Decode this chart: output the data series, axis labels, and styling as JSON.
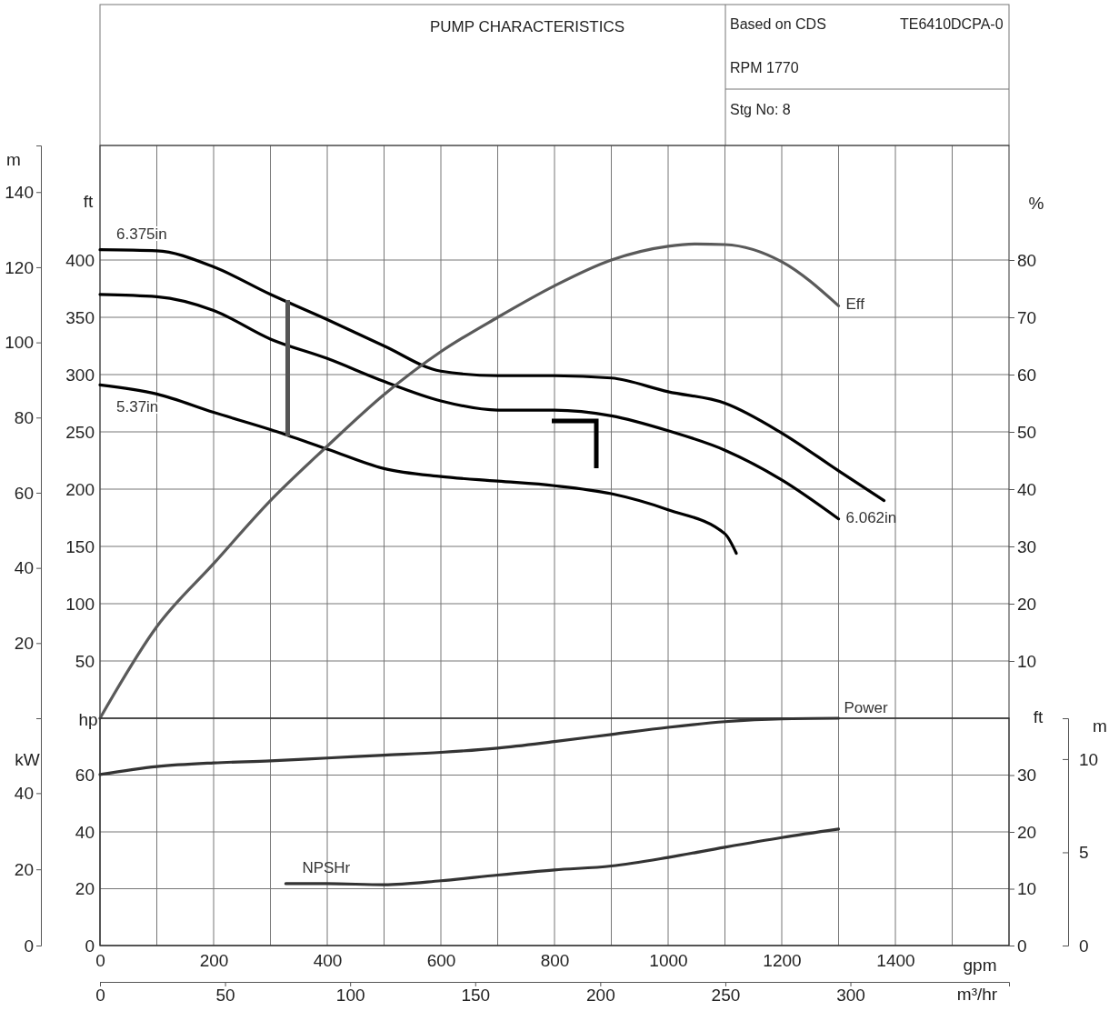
{
  "chart_data": [
    {
      "type": "line",
      "title": "PUMP CHARACTERISTICS",
      "annotations": [
        "Based on CDS",
        "TE6410DCPA-0",
        "RPM  1770",
        "Stg No: 8"
      ],
      "ylabel": "ft",
      "y2label": "%",
      "y3label": "m",
      "xlim": [
        0,
        1600
      ],
      "xticks": [
        0,
        {
          "value": 100,
          "label": null
        },
        200,
        {
          "value": 300,
          "label": null
        },
        400,
        {
          "value": 500,
          "label": null
        },
        600,
        {
          "value": 700,
          "label": null
        },
        800,
        {
          "value": 900,
          "label": null
        },
        1000,
        {
          "value": 1100,
          "label": null
        },
        1200,
        {
          "value": 1300,
          "label": null
        },
        1400,
        {
          "value": 1500,
          "label": null
        }
      ],
      "ylim": [
        0,
        500
      ],
      "yticks": [
        50,
        100,
        150,
        200,
        250,
        300,
        350,
        400
      ],
      "y2lim": [
        0,
        100
      ],
      "y2ticks": [
        10,
        20,
        30,
        40,
        50,
        60,
        70,
        80
      ],
      "y3lim": [
        0,
        152.4
      ],
      "y3ticks": [
        20,
        40,
        60,
        80,
        100,
        120,
        140
      ],
      "grid": true,
      "tick_labels": "y",
      "series": [
        {
          "name": "6.375in",
          "color": "#000000",
          "x": [
            0,
            100,
            200,
            300,
            400,
            500,
            600,
            700,
            800,
            900,
            1000,
            1100,
            1200,
            1300,
            1380
          ],
          "values": [
            409,
            408,
            394,
            370,
            348,
            325,
            303,
            299,
            299,
            297,
            285,
            275,
            249,
            216,
            190
          ]
        },
        {
          "name": "6.062in",
          "color": "#000000",
          "x": [
            0,
            100,
            200,
            300,
            400,
            500,
            600,
            700,
            800,
            900,
            1000,
            1100,
            1200,
            1300
          ],
          "values": [
            370,
            368,
            356,
            331,
            314,
            294,
            277,
            269,
            269,
            264,
            251,
            234,
            208,
            174
          ]
        },
        {
          "name": "5.37in",
          "color": "#000000",
          "x": [
            0,
            100,
            200,
            300,
            400,
            500,
            600,
            700,
            800,
            900,
            1000,
            1100,
            1120
          ],
          "values": [
            291,
            283,
            267,
            252,
            235,
            218,
            211,
            207,
            203,
            196,
            182,
            161,
            144
          ]
        },
        {
          "name": "Eff",
          "color": "#5a5a5a",
          "axis": "y2",
          "x": [
            0,
            100,
            200,
            300,
            400,
            500,
            600,
            700,
            800,
            900,
            1000,
            1050,
            1100,
            1200,
            1300
          ],
          "values": [
            0,
            16,
            27,
            38,
            47.5,
            56.5,
            64,
            70,
            75.5,
            80,
            82.4,
            82.8,
            82.7,
            79.7,
            72
          ]
        }
      ]
    },
    {
      "type": "line",
      "xlabel": "gpm",
      "x2label": "m³/hr",
      "ylabel": "hp",
      "y2label": "kW",
      "xlim": [
        0,
        1600
      ],
      "xticks": [
        0,
        {
          "value": 100,
          "label": null
        },
        200,
        {
          "value": 300,
          "label": null
        },
        400,
        {
          "value": 500,
          "label": null
        },
        600,
        {
          "value": 700,
          "label": null
        },
        800,
        {
          "value": 900,
          "label": null
        },
        1000,
        {
          "value": 1100,
          "label": null
        },
        1200,
        {
          "value": 1300,
          "label": null
        },
        1400,
        {
          "value": 1500,
          "label": null
        }
      ],
      "x2lim": [
        0,
        363.4
      ],
      "x2ticks": [
        0,
        50,
        100,
        150,
        200,
        250,
        300
      ],
      "ylim": [
        0,
        80
      ],
      "yticks": [
        0,
        20,
        40,
        60
      ],
      "y2lim": [
        0,
        59.66
      ],
      "y2ticks": [
        0,
        20,
        40
      ],
      "grid": true,
      "series": [
        {
          "name": "Power",
          "color": "#333333",
          "x": [
            0,
            100,
            200,
            300,
            400,
            500,
            600,
            700,
            800,
            900,
            1000,
            1100,
            1200,
            1300
          ],
          "values": [
            60.2,
            63,
            64.3,
            65,
            66,
            67,
            68,
            69.5,
            71.8,
            74.3,
            76.8,
            78.8,
            79.8,
            80
          ]
        }
      ]
    },
    {
      "type": "line",
      "ylabel": "ft",
      "y2label": "m",
      "xlim": [
        0,
        1600
      ],
      "ylim": [
        0,
        40
      ],
      "yticks": [
        0,
        10,
        20,
        30
      ],
      "y2lim": [
        0,
        12.19
      ],
      "y2ticks": [
        0,
        5,
        10
      ],
      "tick_labels": "y",
      "series": [
        {
          "name": "NPSHr",
          "color": "#333333",
          "x": [
            327,
            400,
            500,
            600,
            700,
            800,
            900,
            1000,
            1100,
            1200,
            1300
          ],
          "values": [
            10.9,
            10.9,
            10.7,
            11.4,
            12.4,
            13.3,
            14,
            15.5,
            17.3,
            19,
            20.5
          ]
        }
      ]
    }
  ]
}
